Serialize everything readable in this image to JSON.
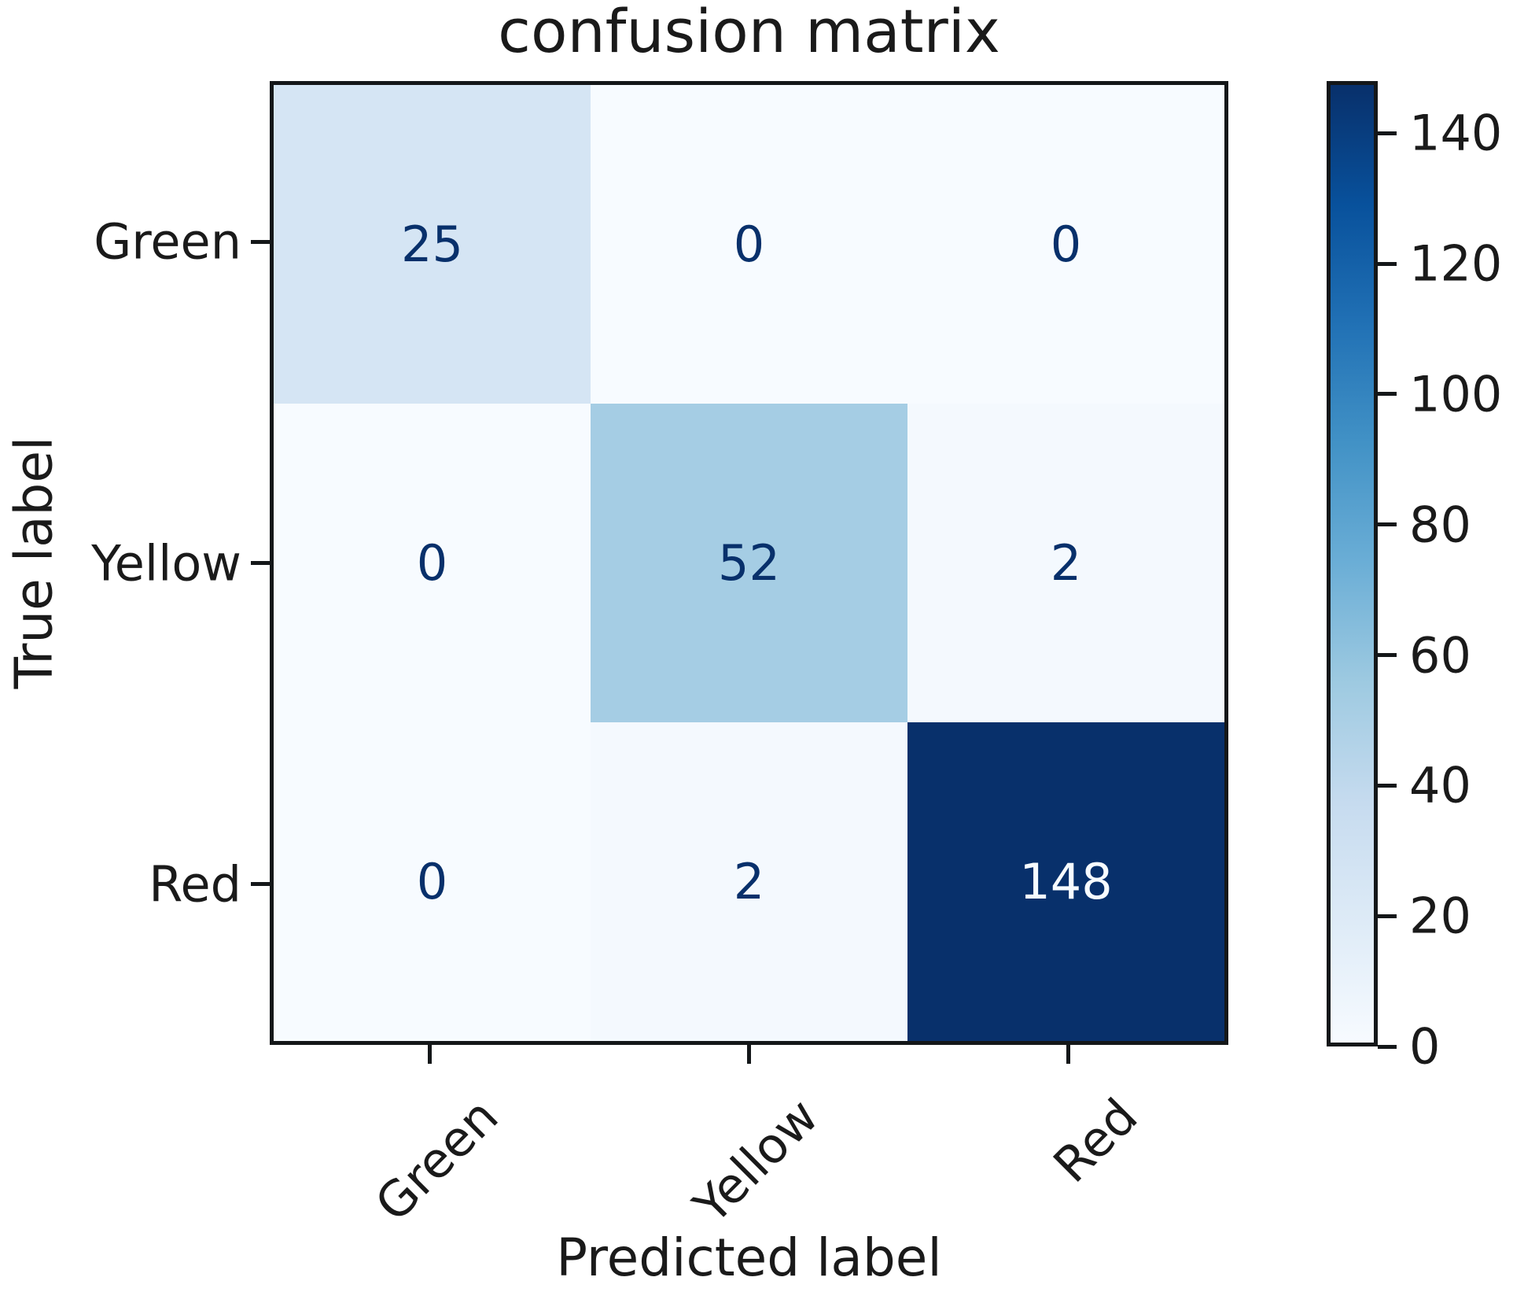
{
  "chart_data": {
    "type": "heatmap",
    "title": "confusion matrix",
    "xlabel": "Predicted label",
    "ylabel": "True label",
    "x_tick_labels": [
      "Green",
      "Yellow",
      "Red"
    ],
    "y_tick_labels": [
      "Green",
      "Yellow",
      "Red"
    ],
    "matrix": [
      [
        25,
        0,
        0
      ],
      [
        0,
        52,
        2
      ],
      [
        0,
        2,
        148
      ]
    ],
    "vmin": 0,
    "vmax": 148,
    "colorbar_ticks": [
      0,
      20,
      40,
      60,
      80,
      100,
      120,
      140
    ],
    "colormap": "Blues",
    "colormap_stops": [
      "#f7fbff",
      "#deebf7",
      "#c6dbef",
      "#9ecae1",
      "#6baed6",
      "#4292c6",
      "#2171b5",
      "#08519c",
      "#08306b"
    ],
    "cell_colors": [
      [
        "#d5e5f4",
        "#f7fbff",
        "#f7fbff"
      ],
      [
        "#f7fbff",
        "#a5cde4",
        "#f4f9fe"
      ],
      [
        "#f7fbff",
        "#f4f9fe",
        "#08306b"
      ]
    ],
    "cell_text_colors": [
      [
        "#08306b",
        "#08306b",
        "#08306b"
      ],
      [
        "#08306b",
        "#08306b",
        "#08306b"
      ],
      [
        "#08306b",
        "#08306b",
        "#f7fbff"
      ]
    ],
    "legend_position": "right-colorbar",
    "grid": false
  },
  "colors": {
    "text": "#1a1a1a",
    "spine": "#141719",
    "background": "#ffffff"
  }
}
